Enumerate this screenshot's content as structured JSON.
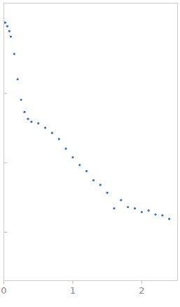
{
  "chart_data": {
    "type": "scatter",
    "x": [
      0.02,
      0.05,
      0.08,
      0.1,
      0.15,
      0.2,
      0.25,
      0.3,
      0.35,
      0.4,
      0.5,
      0.6,
      0.7,
      0.8,
      0.9,
      1.0,
      1.1,
      1.2,
      1.3,
      1.4,
      1.5,
      1.6,
      1.7,
      1.8,
      1.9,
      2.0,
      2.1,
      2.2,
      2.3,
      2.4
    ],
    "values": [
      10.5,
      9.3,
      7.9,
      6.6,
      3.7,
      1.6,
      0.81,
      0.54,
      0.43,
      0.39,
      0.37,
      0.32,
      0.27,
      0.22,
      0.16,
      0.12,
      0.093,
      0.076,
      0.056,
      0.048,
      0.037,
      0.022,
      0.029,
      0.023,
      0.022,
      0.0195,
      0.0205,
      0.018,
      0.0175,
      0.0155
    ],
    "color": "#3b6fb6",
    "marker": "circle",
    "xlim": [
      0,
      2.52
    ],
    "xticks": [
      0,
      1,
      2
    ],
    "ylim": [
      0.002,
      20
    ],
    "yticks": [
      0.01,
      0.1,
      1
    ],
    "log": "y",
    "tick_labels": "x",
    "grid": false
  }
}
